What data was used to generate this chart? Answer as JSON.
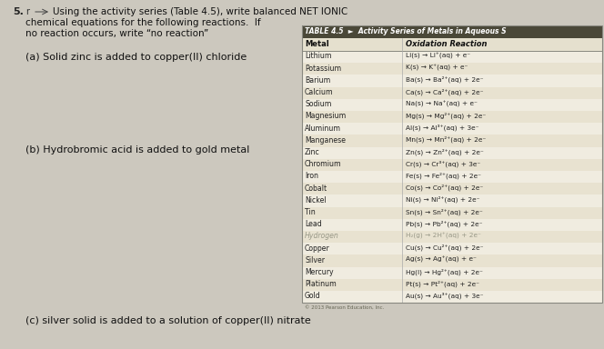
{
  "page_bg": "#ccc8be",
  "title_line1": "Using the activity series (Table 4.5), write balanced NET IONIC",
  "title_line2": "chemical equations for the following reactions.  If",
  "title_line3": "no reaction occurs, write “no reaction”",
  "question_number": "5.",
  "sub_q_a": "(a) Solid zinc is added to copper(II) chloride",
  "sub_q_b": "(b) Hydrobromic acid is added to gold metal",
  "sub_q_c": "(c) silver solid is added to a solution of copper(II) nitrate",
  "table_title": "TABLE 4.5  ►  Activity Series of Metals in Aqueous S",
  "table_header_metal": "Metal",
  "table_header_reaction": "Oxidation Reaction",
  "table_header_bg": "#4a4838",
  "table_bg_light": "#f0ece0",
  "table_bg_dark": "#e8e2d0",
  "metals": [
    "Lithium",
    "Potassium",
    "Barium",
    "Calcium",
    "Sodium",
    "Magnesium",
    "Aluminum",
    "Manganese",
    "Zinc",
    "Chromium",
    "Iron",
    "Cobalt",
    "Nickel",
    "Tin",
    "Lead",
    "Hydrogen",
    "Copper",
    "Silver",
    "Mercury",
    "Platinum",
    "Gold"
  ],
  "reactions": [
    "Li(s) → Li⁺(aq) + e⁻",
    "K(s) → K⁺(aq) + e⁻",
    "Ba(s) → Ba²⁺(aq) + 2e⁻",
    "Ca(s) → Ca²⁺(aq) + 2e⁻",
    "Na(s) → Na⁺(aq) + e⁻",
    "Mg(s) → Mg²⁺(aq) + 2e⁻",
    "Al(s) → Al³⁺(aq) + 3e⁻",
    "Mn(s) → Mn²⁺(aq) + 2e⁻",
    "Zn(s) → Zn²⁺(aq) + 2e⁻",
    "Cr(s) → Cr³⁺(aq) + 3e⁻",
    "Fe(s) → Fe²⁺(aq) + 2e⁻",
    "Co(s) → Co²⁺(aq) + 2e⁻",
    "Ni(s) → Ni²⁺(aq) + 2e⁻",
    "Sn(s) → Sn²⁺(aq) + 2e⁻",
    "Pb(s) → Pb²⁺(aq) + 2e⁻",
    "H₂(g) → 2H⁺(aq) + 2e⁻",
    "Cu(s) → Cu²⁺(aq) + 2e⁻",
    "Ag(s) → Ag⁺(aq) + e⁻",
    "Hg(l) → Hg²⁺(aq) + 2e⁻",
    "Pt(s) → Pt²⁺(aq) + 2e⁻",
    "Au(s) → Au³⁺(aq) + 3e⁻"
  ],
  "hydrogen_idx": 15,
  "copyright": "© 2013 Pearson Education, Inc."
}
